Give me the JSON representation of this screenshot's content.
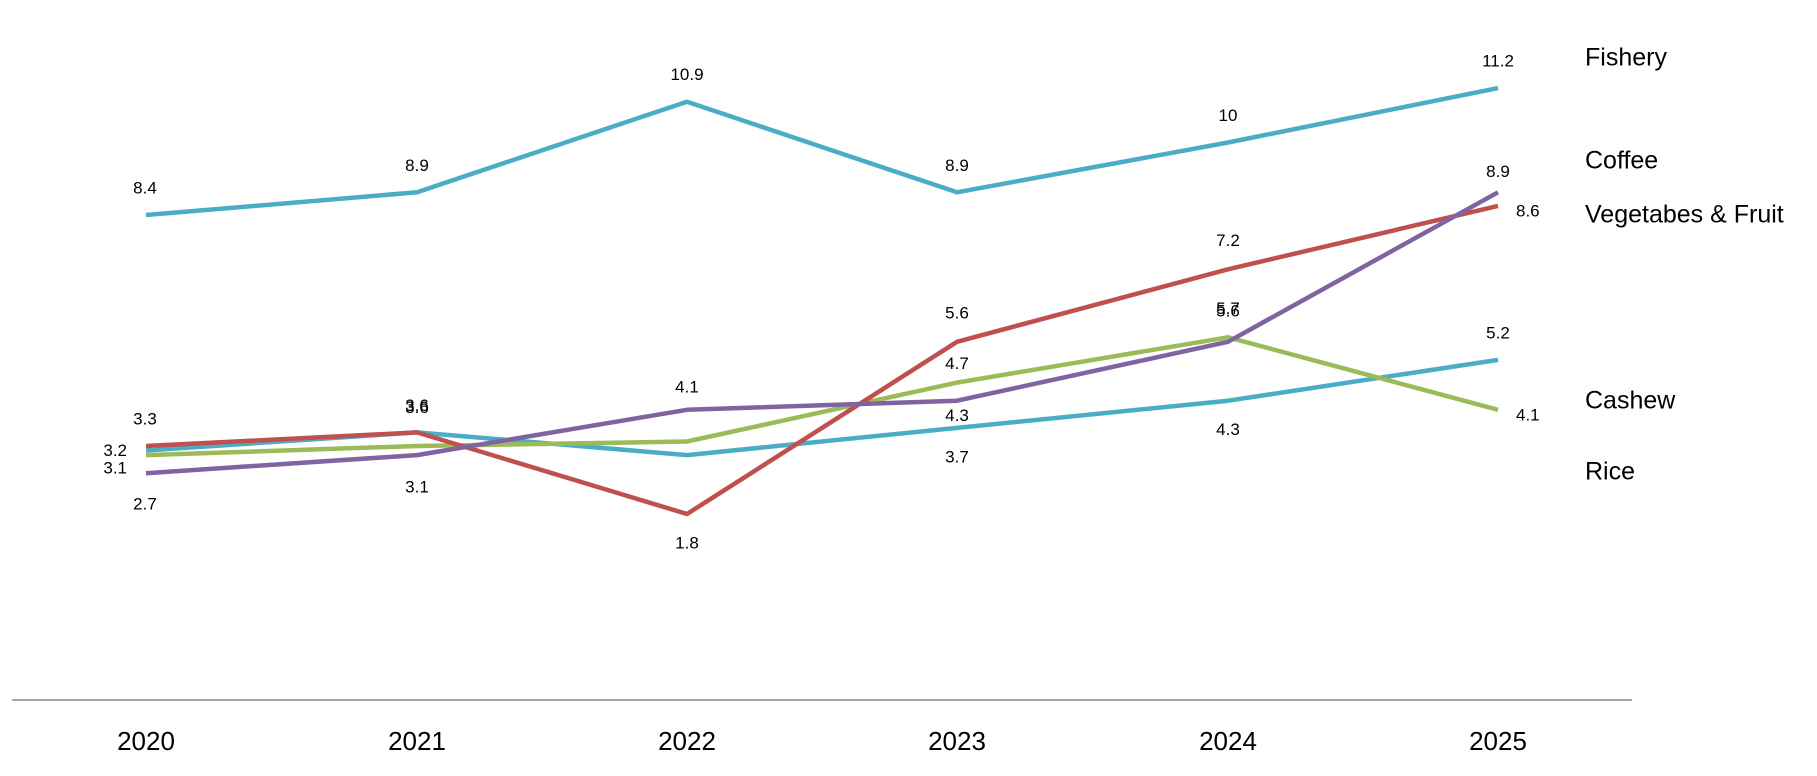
{
  "chart_data": {
    "type": "line",
    "categories": [
      "2020",
      "2021",
      "2022",
      "2023",
      "2024",
      "2025"
    ],
    "series": [
      {
        "name": "Fishery",
        "color": "#4BACC6",
        "values": [
          8.4,
          8.9,
          10.9,
          8.9,
          10,
          11.2
        ],
        "labels": [
          "8.4",
          "8.9",
          "10.9",
          "8.9",
          "10",
          "11.2"
        ]
      },
      {
        "name": "Coffee",
        "color": "#8064A2",
        "values": [
          2.7,
          3.1,
          4.1,
          4.3,
          5.6,
          8.9
        ],
        "labels": [
          "2.7",
          "3.1",
          "4.1",
          "4.3",
          "5.6",
          "8.9"
        ]
      },
      {
        "name": "Vegetabes & Fruit",
        "color": "#C0504D",
        "values": [
          3.3,
          3.6,
          1.8,
          5.6,
          7.2,
          8.6
        ],
        "labels": [
          "3.3",
          "3.6",
          "1.8",
          "5.6",
          "7.2",
          "8.6"
        ]
      },
      {
        "name": "Cashew",
        "color": "#4BACC6",
        "values": [
          3.2,
          3.6,
          3.1,
          3.7,
          4.3,
          5.2
        ],
        "labels": [
          "3.2",
          "3.6",
          "",
          "3.7",
          "4.3",
          "5.2"
        ]
      },
      {
        "name": "Rice",
        "color": "#9BBB59",
        "values": [
          3.1,
          3.3,
          3.4,
          4.7,
          5.7,
          4.1
        ],
        "labels": [
          "3.1",
          "",
          "",
          "4.7",
          "5.7",
          "4.1"
        ]
      }
    ],
    "legend": "right-of-line-ends",
    "grid": false
  }
}
